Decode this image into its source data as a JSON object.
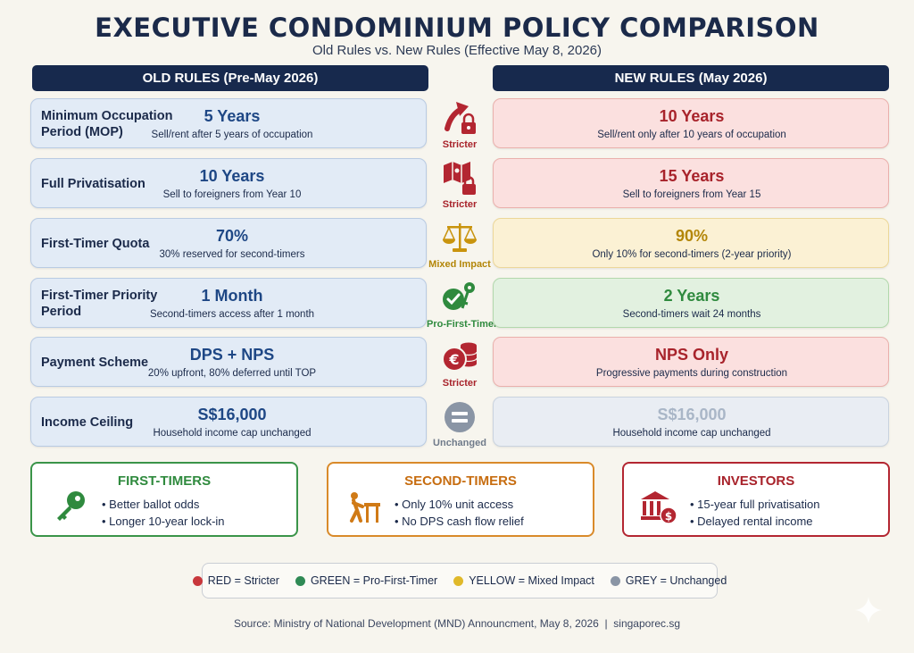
{
  "title": "EXECUTIVE CONDOMINIUM POLICY COMPARISON",
  "subtitle": "Old Rules vs. New Rules (Effective May 8, 2026)",
  "old_header": "OLD RULES (Pre-May 2026)",
  "new_header": "NEW RULES (May 2026)",
  "rows": [
    {
      "label": "Minimum Occupation Period (MOP)",
      "old_value": "5 Years",
      "old_desc": "Sell/rent after 5 years of occupation",
      "impact": "Stricter",
      "impact_icon": "arrow-up-lock-icon",
      "new_value": "10 Years",
      "new_desc": "Sell/rent only after 10 years of occupation",
      "color": "#a8232b"
    },
    {
      "label": "Full Privatisation",
      "old_value": "10 Years",
      "old_desc": "Sell to foreigners from Year 10",
      "impact": "Stricter",
      "impact_icon": "map-lock-icon",
      "new_value": "15 Years",
      "new_desc": "Sell to foreigners from Year 15",
      "color": "#a8232b"
    },
    {
      "label": "First-Timer Quota",
      "old_value": "70%",
      "old_desc": "30% reserved for second-timers",
      "impact": "Mixed Impact",
      "impact_icon": "scales-icon",
      "new_value": "90%",
      "new_desc": "Only 10% for second-timers (2-year priority)",
      "color": "#b38608"
    },
    {
      "label": "First-Timer Priority Period",
      "old_value": "1 Month",
      "old_desc": "Second-timers access after 1 month",
      "impact": "Pro-First-Timer",
      "impact_icon": "check-key-icon",
      "new_value": "2 Years",
      "new_desc": "Second-timers wait 24 months",
      "color": "#2f8a3e"
    },
    {
      "label": "Payment Scheme",
      "old_value": "DPS + NPS",
      "old_desc": "20% upfront, 80% deferred until TOP",
      "impact": "Stricter",
      "impact_icon": "coins-icon",
      "new_value": "NPS Only",
      "new_desc": "Progressive payments during construction",
      "color": "#a8232b"
    },
    {
      "label": "Income Ceiling",
      "old_value": "S$16,000",
      "old_desc": "Household income cap unchanged",
      "impact": "Unchanged",
      "impact_icon": "equals-icon",
      "new_value": "S$16,000",
      "new_desc": "Household income cap unchanged",
      "color": "#8a95a5"
    }
  ],
  "groups": [
    {
      "title": "FIRST-TIMERS",
      "icon": "key-icon",
      "color": "#2f8a3e",
      "bullets": [
        "Better ballot odds",
        "Longer 10-year lock-in"
      ]
    },
    {
      "title": "SECOND-TIMERS",
      "icon": "worker-obstacle-icon",
      "color": "#d07a16",
      "bullets": [
        "Only 10% unit access",
        "No DPS cash flow relief"
      ]
    },
    {
      "title": "INVESTORS",
      "icon": "bank-money-icon",
      "color": "#b32631",
      "bullets": [
        "15-year full privatisation",
        "Delayed rental income"
      ]
    }
  ],
  "legend": [
    {
      "label": "RED = Stricter",
      "color": "#c8373b"
    },
    {
      "label": "GREEN = Pro-First-Timer",
      "color": "#2f8a55"
    },
    {
      "label": "YELLOW = Mixed Impact",
      "color": "#e0b92a"
    },
    {
      "label": "GREY = Unchanged",
      "color": "#8a95a5"
    }
  ],
  "source": "Source: Ministry of National Development (MND) Announcment, May 8, 2026  |  singaporec.sg"
}
